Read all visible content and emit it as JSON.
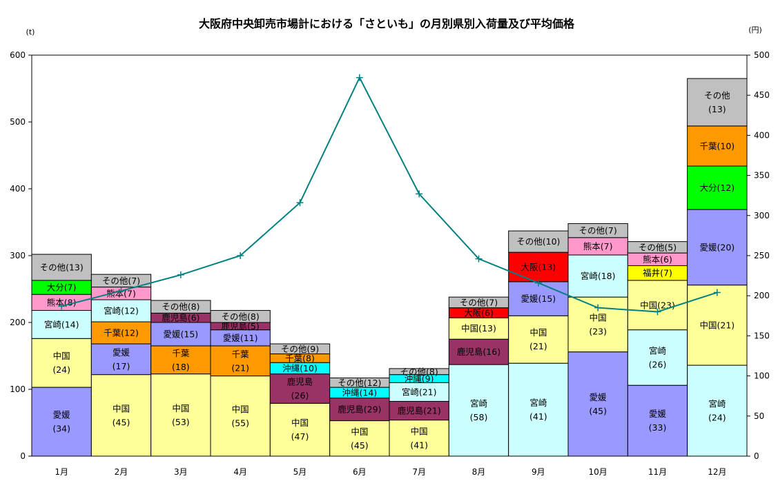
{
  "chart_data": {
    "type": "bar",
    "stacked": true,
    "title": "大阪府中央卸売市場計における「さといも」の月別県別入荷量及び平均価格",
    "ylabel_left": "(t)",
    "ylabel_right": "(円)",
    "ylim_left": [
      0,
      600
    ],
    "yticks_left": [
      0,
      100,
      200,
      300,
      400,
      500,
      600
    ],
    "ylim_right": [
      0,
      500
    ],
    "yticks_right": [
      0,
      50,
      100,
      150,
      200,
      250,
      300,
      350,
      400,
      450,
      500
    ],
    "categories": [
      "1月",
      "2月",
      "3月",
      "4月",
      "5月",
      "6月",
      "7月",
      "8月",
      "9月",
      "10月",
      "11月",
      "12月"
    ],
    "colors": {
      "愛媛": "#9999ff",
      "中国": "#ffff99",
      "宮崎": "#ccffff",
      "熊本": "#ff99cc",
      "大分": "#00ff00",
      "その他": "#c0c0c0",
      "千葉": "#ff9900",
      "鹿児島": "#993366",
      "沖縄": "#00ffff",
      "大阪": "#ff0000",
      "福井": "#ffff00",
      "line": "#008080"
    },
    "stacks": [
      [
        {
          "name": "愛媛",
          "value": 103,
          "label": "愛媛\n(34)"
        },
        {
          "name": "中国",
          "value": 73,
          "label": "中国\n(24)"
        },
        {
          "name": "宮崎",
          "value": 42,
          "label": "宮崎(14)"
        },
        {
          "name": "熊本",
          "value": 24,
          "label": "熊本(8)"
        },
        {
          "name": "大分",
          "value": 21,
          "label": "大分(7)"
        },
        {
          "name": "その他",
          "value": 39,
          "label": "その他(13)"
        }
      ],
      [
        {
          "name": "中国",
          "value": 122,
          "label": "中国\n(45)"
        },
        {
          "name": "愛媛",
          "value": 46,
          "label": "愛媛\n(17)"
        },
        {
          "name": "千葉",
          "value": 33,
          "label": "千葉(12)"
        },
        {
          "name": "宮崎",
          "value": 33,
          "label": "宮崎(12)"
        },
        {
          "name": "熊本",
          "value": 19,
          "label": "熊本(7)"
        },
        {
          "name": "その他",
          "value": 19,
          "label": "その他(7)"
        }
      ],
      [
        {
          "name": "中国",
          "value": 123,
          "label": "中国\n(53)"
        },
        {
          "name": "千葉",
          "value": 42,
          "label": "千葉\n(18)"
        },
        {
          "name": "愛媛",
          "value": 35,
          "label": "愛媛(15)"
        },
        {
          "name": "鹿児島",
          "value": 14,
          "label": "鹿児島(6)"
        },
        {
          "name": "その他",
          "value": 19,
          "label": "その他(8)"
        }
      ],
      [
        {
          "name": "中国",
          "value": 120,
          "label": "中国\n(55)"
        },
        {
          "name": "千葉",
          "value": 45,
          "label": "千葉\n(21)"
        },
        {
          "name": "愛媛",
          "value": 24,
          "label": "愛媛(11)"
        },
        {
          "name": "鹿児島",
          "value": 11,
          "label": "鹿児島(5)"
        },
        {
          "name": "その他",
          "value": 18,
          "label": "その他(8)"
        }
      ],
      [
        {
          "name": "中国",
          "value": 79,
          "label": "中国\n(47)"
        },
        {
          "name": "鹿児島",
          "value": 44,
          "label": "鹿児島\n(26)"
        },
        {
          "name": "沖縄",
          "value": 17,
          "label": "沖縄(10)"
        },
        {
          "name": "千葉",
          "value": 13,
          "label": "千葉(8)"
        },
        {
          "name": "その他",
          "value": 15,
          "label": "その他(9)"
        }
      ],
      [
        {
          "name": "中国",
          "value": 53,
          "label": "中国\n(45)"
        },
        {
          "name": "鹿児島",
          "value": 34,
          "label": "鹿児島(29)"
        },
        {
          "name": "沖縄",
          "value": 16,
          "label": "沖縄(14)"
        },
        {
          "name": "その他",
          "value": 14,
          "label": "その他(12)"
        }
      ],
      [
        {
          "name": "中国",
          "value": 54,
          "label": "中国\n(41)"
        },
        {
          "name": "鹿児島",
          "value": 28,
          "label": "鹿児島(21)"
        },
        {
          "name": "宮崎",
          "value": 28,
          "label": "宮崎(21)"
        },
        {
          "name": "沖縄",
          "value": 12,
          "label": "沖縄(9)"
        },
        {
          "name": "その他",
          "value": 9,
          "label": "その他(8)"
        }
      ],
      [
        {
          "name": "宮崎",
          "value": 137,
          "label": "宮崎\n(58)"
        },
        {
          "name": "鹿児島",
          "value": 38,
          "label": "鹿児島(16)"
        },
        {
          "name": "中国",
          "value": 32,
          "label": "中国(13)"
        },
        {
          "name": "大阪",
          "value": 15,
          "label": "大阪(6)"
        },
        {
          "name": "その他",
          "value": 16,
          "label": "その他(7)"
        }
      ],
      [
        {
          "name": "宮崎",
          "value": 139,
          "label": "宮崎\n(41)"
        },
        {
          "name": "中国",
          "value": 71,
          "label": "中国\n(21)"
        },
        {
          "name": "愛媛",
          "value": 51,
          "label": "愛媛(15)"
        },
        {
          "name": "大阪",
          "value": 44,
          "label": "大阪(13)"
        },
        {
          "name": "その他",
          "value": 32,
          "label": "その他(10)"
        }
      ],
      [
        {
          "name": "愛媛",
          "value": 156,
          "label": "愛媛\n(45)"
        },
        {
          "name": "中国",
          "value": 82,
          "label": "中国\n(23)"
        },
        {
          "name": "宮崎",
          "value": 63,
          "label": "宮崎(18)"
        },
        {
          "name": "熊本",
          "value": 26,
          "label": "熊本(7)"
        },
        {
          "name": "その他",
          "value": 21,
          "label": "その他(7)"
        }
      ],
      [
        {
          "name": "愛媛",
          "value": 106,
          "label": "愛媛\n(33)"
        },
        {
          "name": "宮崎",
          "value": 83,
          "label": "宮崎\n(26)"
        },
        {
          "name": "中国",
          "value": 74,
          "label": "中国(23)"
        },
        {
          "name": "福井",
          "value": 22,
          "label": "福井(7)"
        },
        {
          "name": "熊本",
          "value": 19,
          "label": "熊本(6)"
        },
        {
          "name": "その他",
          "value": 17,
          "label": "その他(5)"
        }
      ],
      [
        {
          "name": "宮崎",
          "value": 136,
          "label": "宮崎\n(24)"
        },
        {
          "name": "中国",
          "value": 120,
          "label": "中国(21)"
        },
        {
          "name": "愛媛",
          "value": 113,
          "label": "愛媛(20)"
        },
        {
          "name": "大分",
          "value": 65,
          "label": "大分(12)"
        },
        {
          "name": "千葉",
          "value": 60,
          "label": "千葉(10)"
        },
        {
          "name": "その他",
          "value": 71,
          "label": "その他\n(13)"
        }
      ]
    ],
    "line": {
      "name": "平均価格",
      "axis": "right",
      "values": [
        187,
        206,
        226,
        250,
        316,
        472,
        327,
        246,
        216,
        185,
        180,
        204
      ]
    }
  }
}
